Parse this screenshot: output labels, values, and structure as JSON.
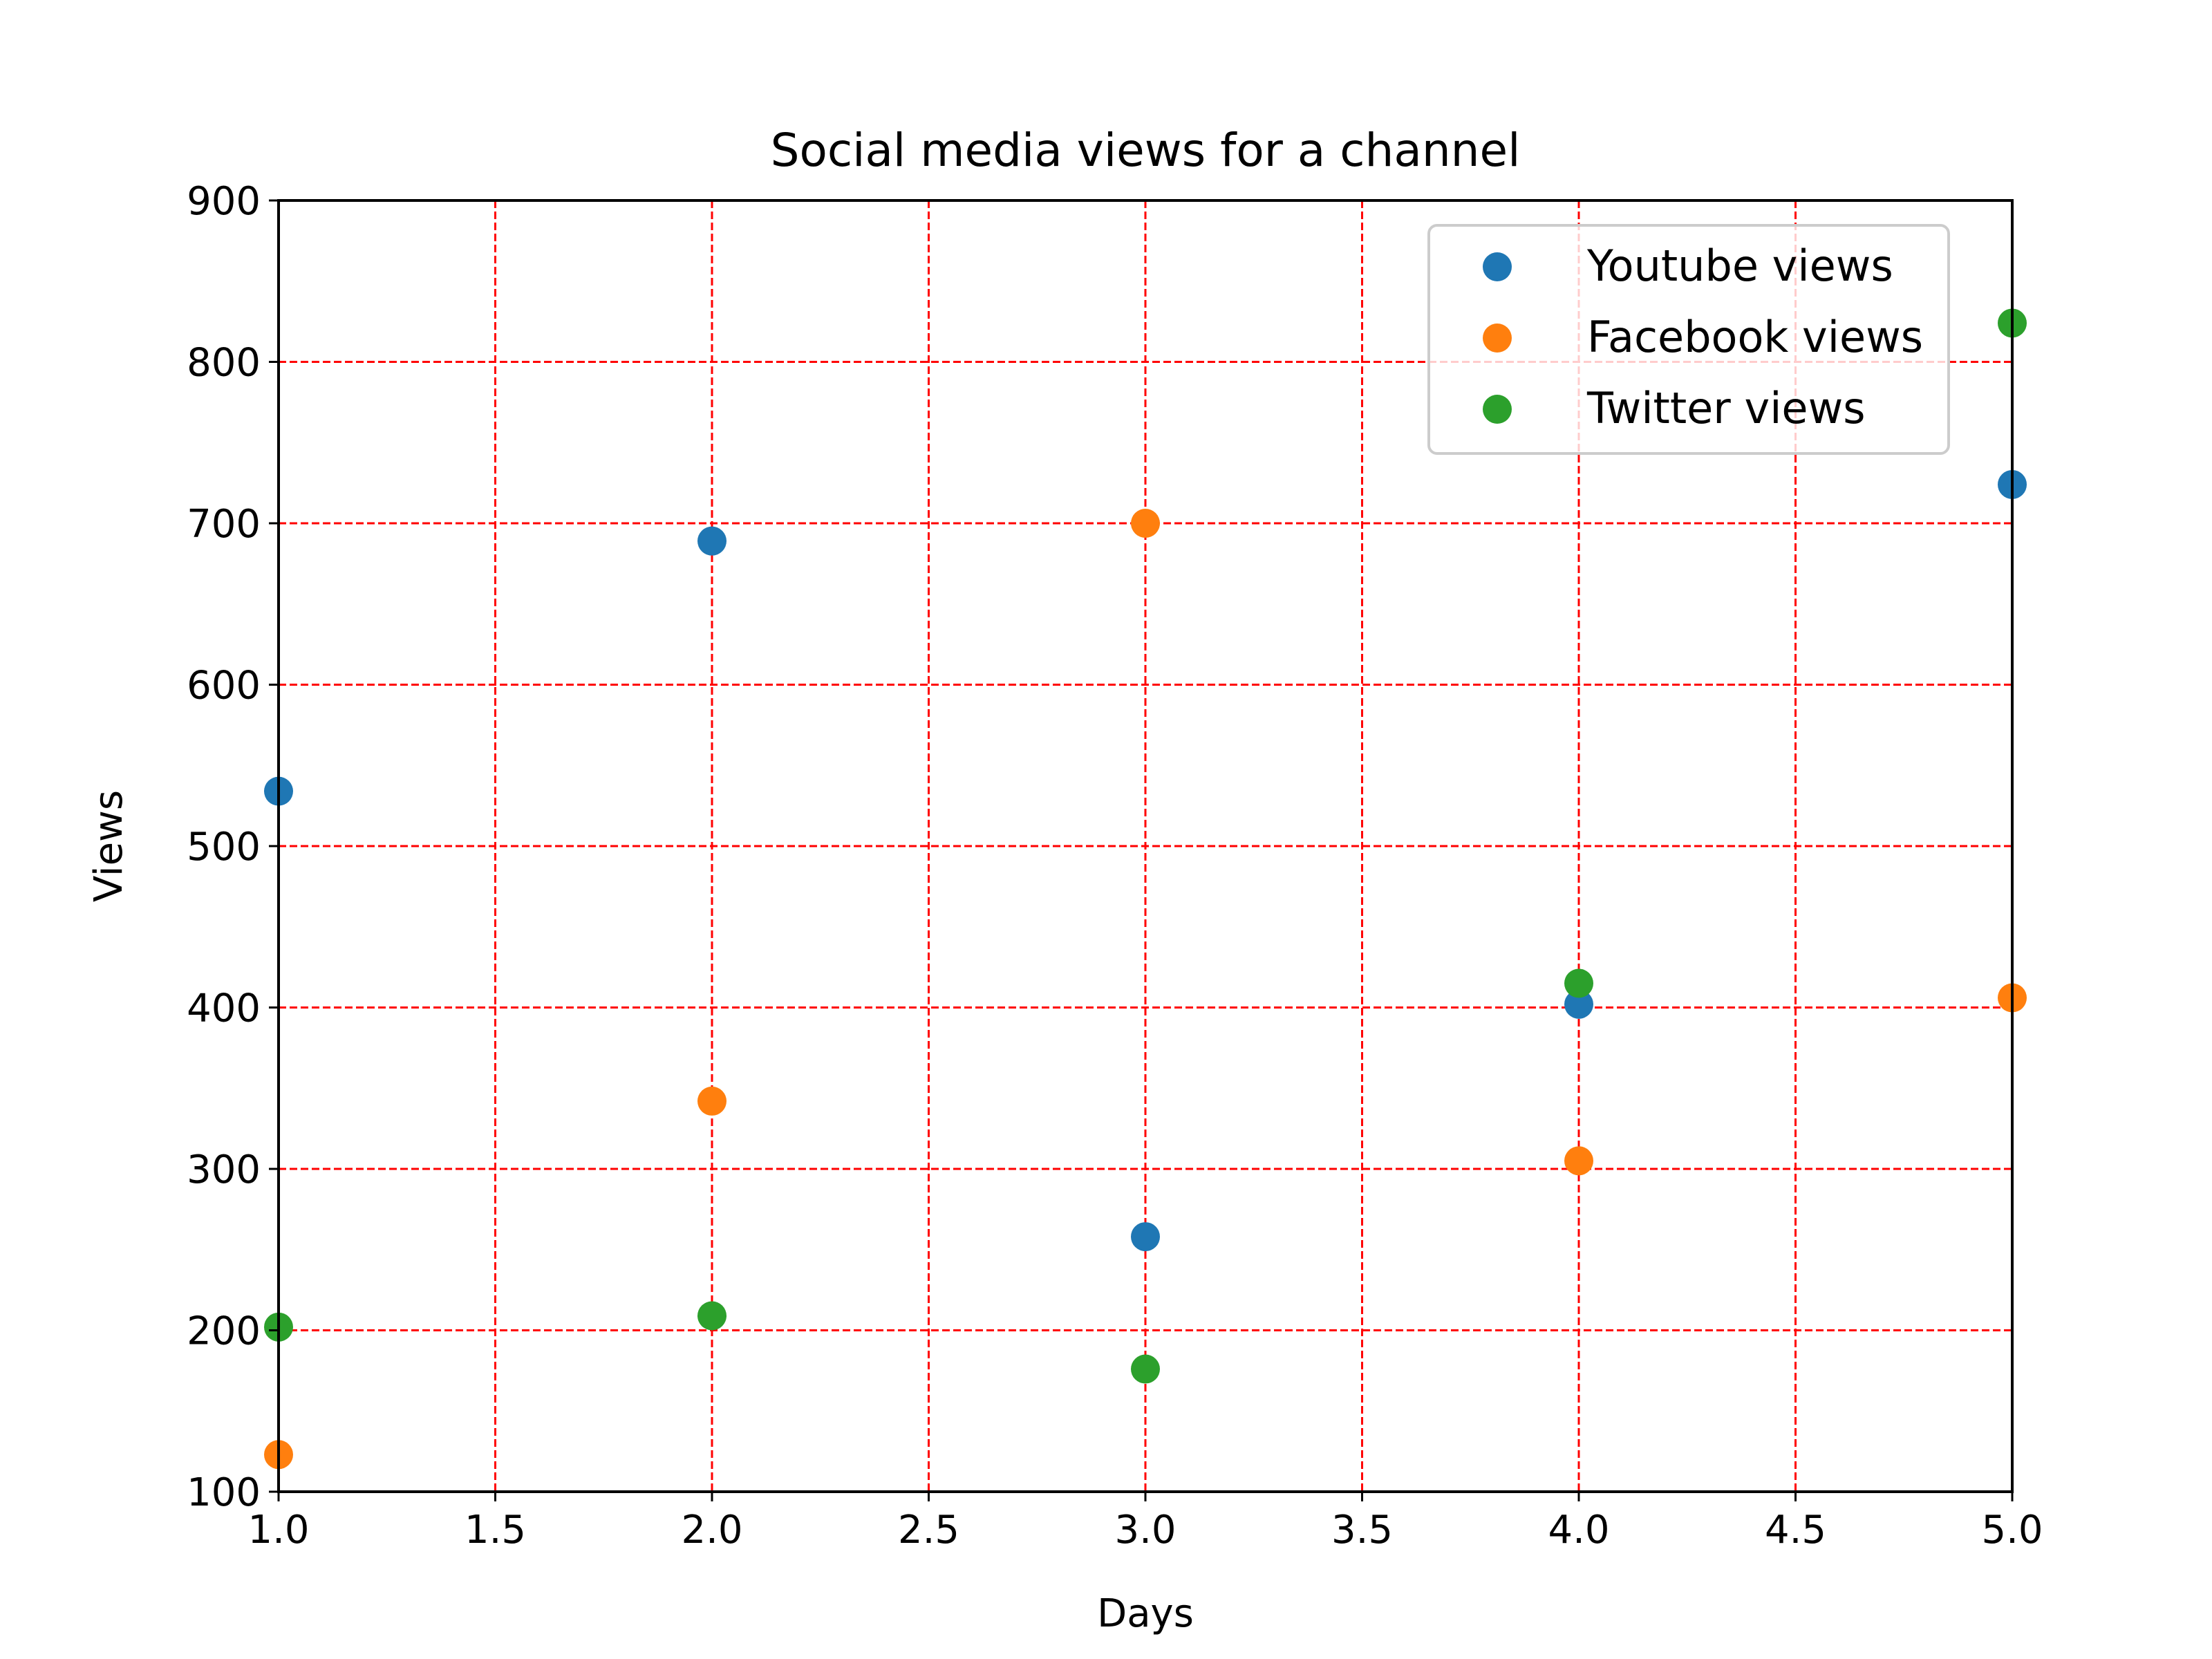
{
  "chart_data": {
    "type": "scatter",
    "title": "Social media views for a channel",
    "xlabel": "Days",
    "ylabel": "Views",
    "xlim": [
      1.0,
      5.0
    ],
    "ylim": [
      100,
      900
    ],
    "xticks": [
      1.0,
      1.5,
      2.0,
      2.5,
      3.0,
      3.5,
      4.0,
      4.5,
      5.0
    ],
    "xtick_labels": [
      "1.0",
      "1.5",
      "2.0",
      "2.5",
      "3.0",
      "3.5",
      "4.0",
      "4.5",
      "5.0"
    ],
    "yticks": [
      100,
      200,
      300,
      400,
      500,
      600,
      700,
      800,
      900
    ],
    "ytick_labels": [
      "100",
      "200",
      "300",
      "400",
      "500",
      "600",
      "700",
      "800",
      "900"
    ],
    "grid": true,
    "grid_color": "#ff0000",
    "grid_style": "dashed",
    "legend_position": "top-right",
    "x": [
      1,
      2,
      3,
      4,
      5
    ],
    "series": [
      {
        "name": "Youtube views",
        "color": "#1f77b4",
        "values": [
          534,
          689,
          258,
          402,
          724
        ]
      },
      {
        "name": "Facebook views",
        "color": "#ff7f0e",
        "values": [
          123,
          342,
          700,
          305,
          406
        ]
      },
      {
        "name": "Twitter views",
        "color": "#2ca02c",
        "values": [
          202,
          209,
          176,
          415,
          824
        ]
      }
    ]
  }
}
